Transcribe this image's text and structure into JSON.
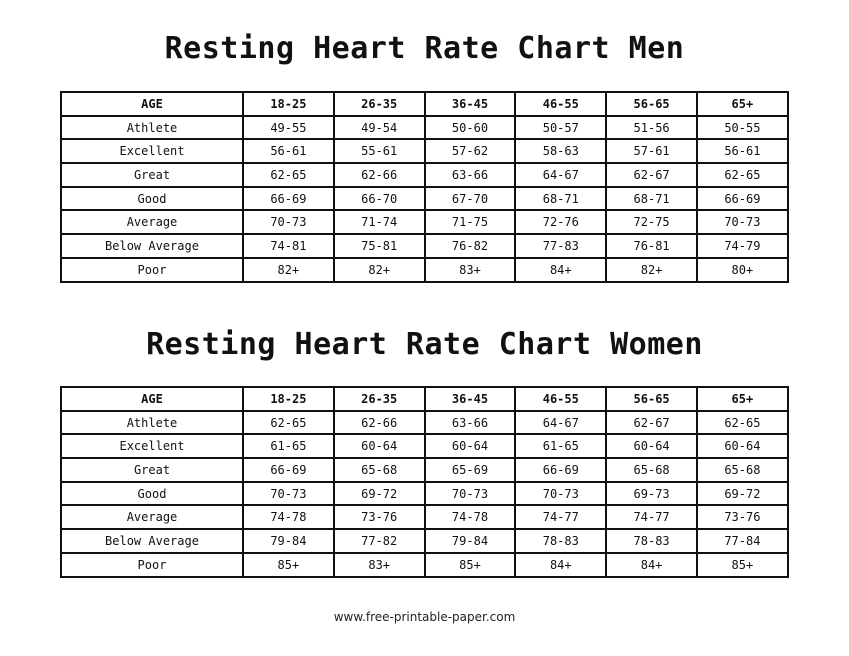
{
  "men": {
    "title": "Resting Heart Rate Chart Men",
    "headers": [
      "AGE",
      "18-25",
      "26-35",
      "36-45",
      "46-55",
      "56-65",
      "65+"
    ],
    "rows": [
      [
        "Athlete",
        "49-55",
        "49-54",
        "50-60",
        "50-57",
        "51-56",
        "50-55"
      ],
      [
        "Excellent",
        "56-61",
        "55-61",
        "57-62",
        "58-63",
        "57-61",
        "56-61"
      ],
      [
        "Great",
        "62-65",
        "62-66",
        "63-66",
        "64-67",
        "62-67",
        "62-65"
      ],
      [
        "Good",
        "66-69",
        "66-70",
        "67-70",
        "68-71",
        "68-71",
        "66-69"
      ],
      [
        "Average",
        "70-73",
        "71-74",
        "71-75",
        "72-76",
        "72-75",
        "70-73"
      ],
      [
        "Below Average",
        "74-81",
        "75-81",
        "76-82",
        "77-83",
        "76-81",
        "74-79"
      ],
      [
        "Poor",
        "82+",
        "82+",
        "83+",
        "84+",
        "82+",
        "80+"
      ]
    ]
  },
  "women": {
    "title": "Resting Heart Rate Chart Women",
    "headers": [
      "AGE",
      "18-25",
      "26-35",
      "36-45",
      "46-55",
      "56-65",
      "65+"
    ],
    "rows": [
      [
        "Athlete",
        "62-65",
        "62-66",
        "63-66",
        "64-67",
        "62-67",
        "62-65"
      ],
      [
        "Excellent",
        "61-65",
        "60-64",
        "60-64",
        "61-65",
        "60-64",
        "60-64"
      ],
      [
        "Great",
        "66-69",
        "65-68",
        "65-69",
        "66-69",
        "65-68",
        "65-68"
      ],
      [
        "Good",
        "70-73",
        "69-72",
        "70-73",
        "70-73",
        "69-73",
        "69-72"
      ],
      [
        "Average",
        "74-78",
        "73-76",
        "74-78",
        "74-77",
        "74-77",
        "73-76"
      ],
      [
        "Below Average",
        "79-84",
        "77-82",
        "79-84",
        "78-83",
        "78-83",
        "77-84"
      ],
      [
        "Poor",
        "85+",
        "83+",
        "85+",
        "84+",
        "84+",
        "85+"
      ]
    ]
  },
  "footer": {
    "source": "www.free-printable-paper.com"
  }
}
